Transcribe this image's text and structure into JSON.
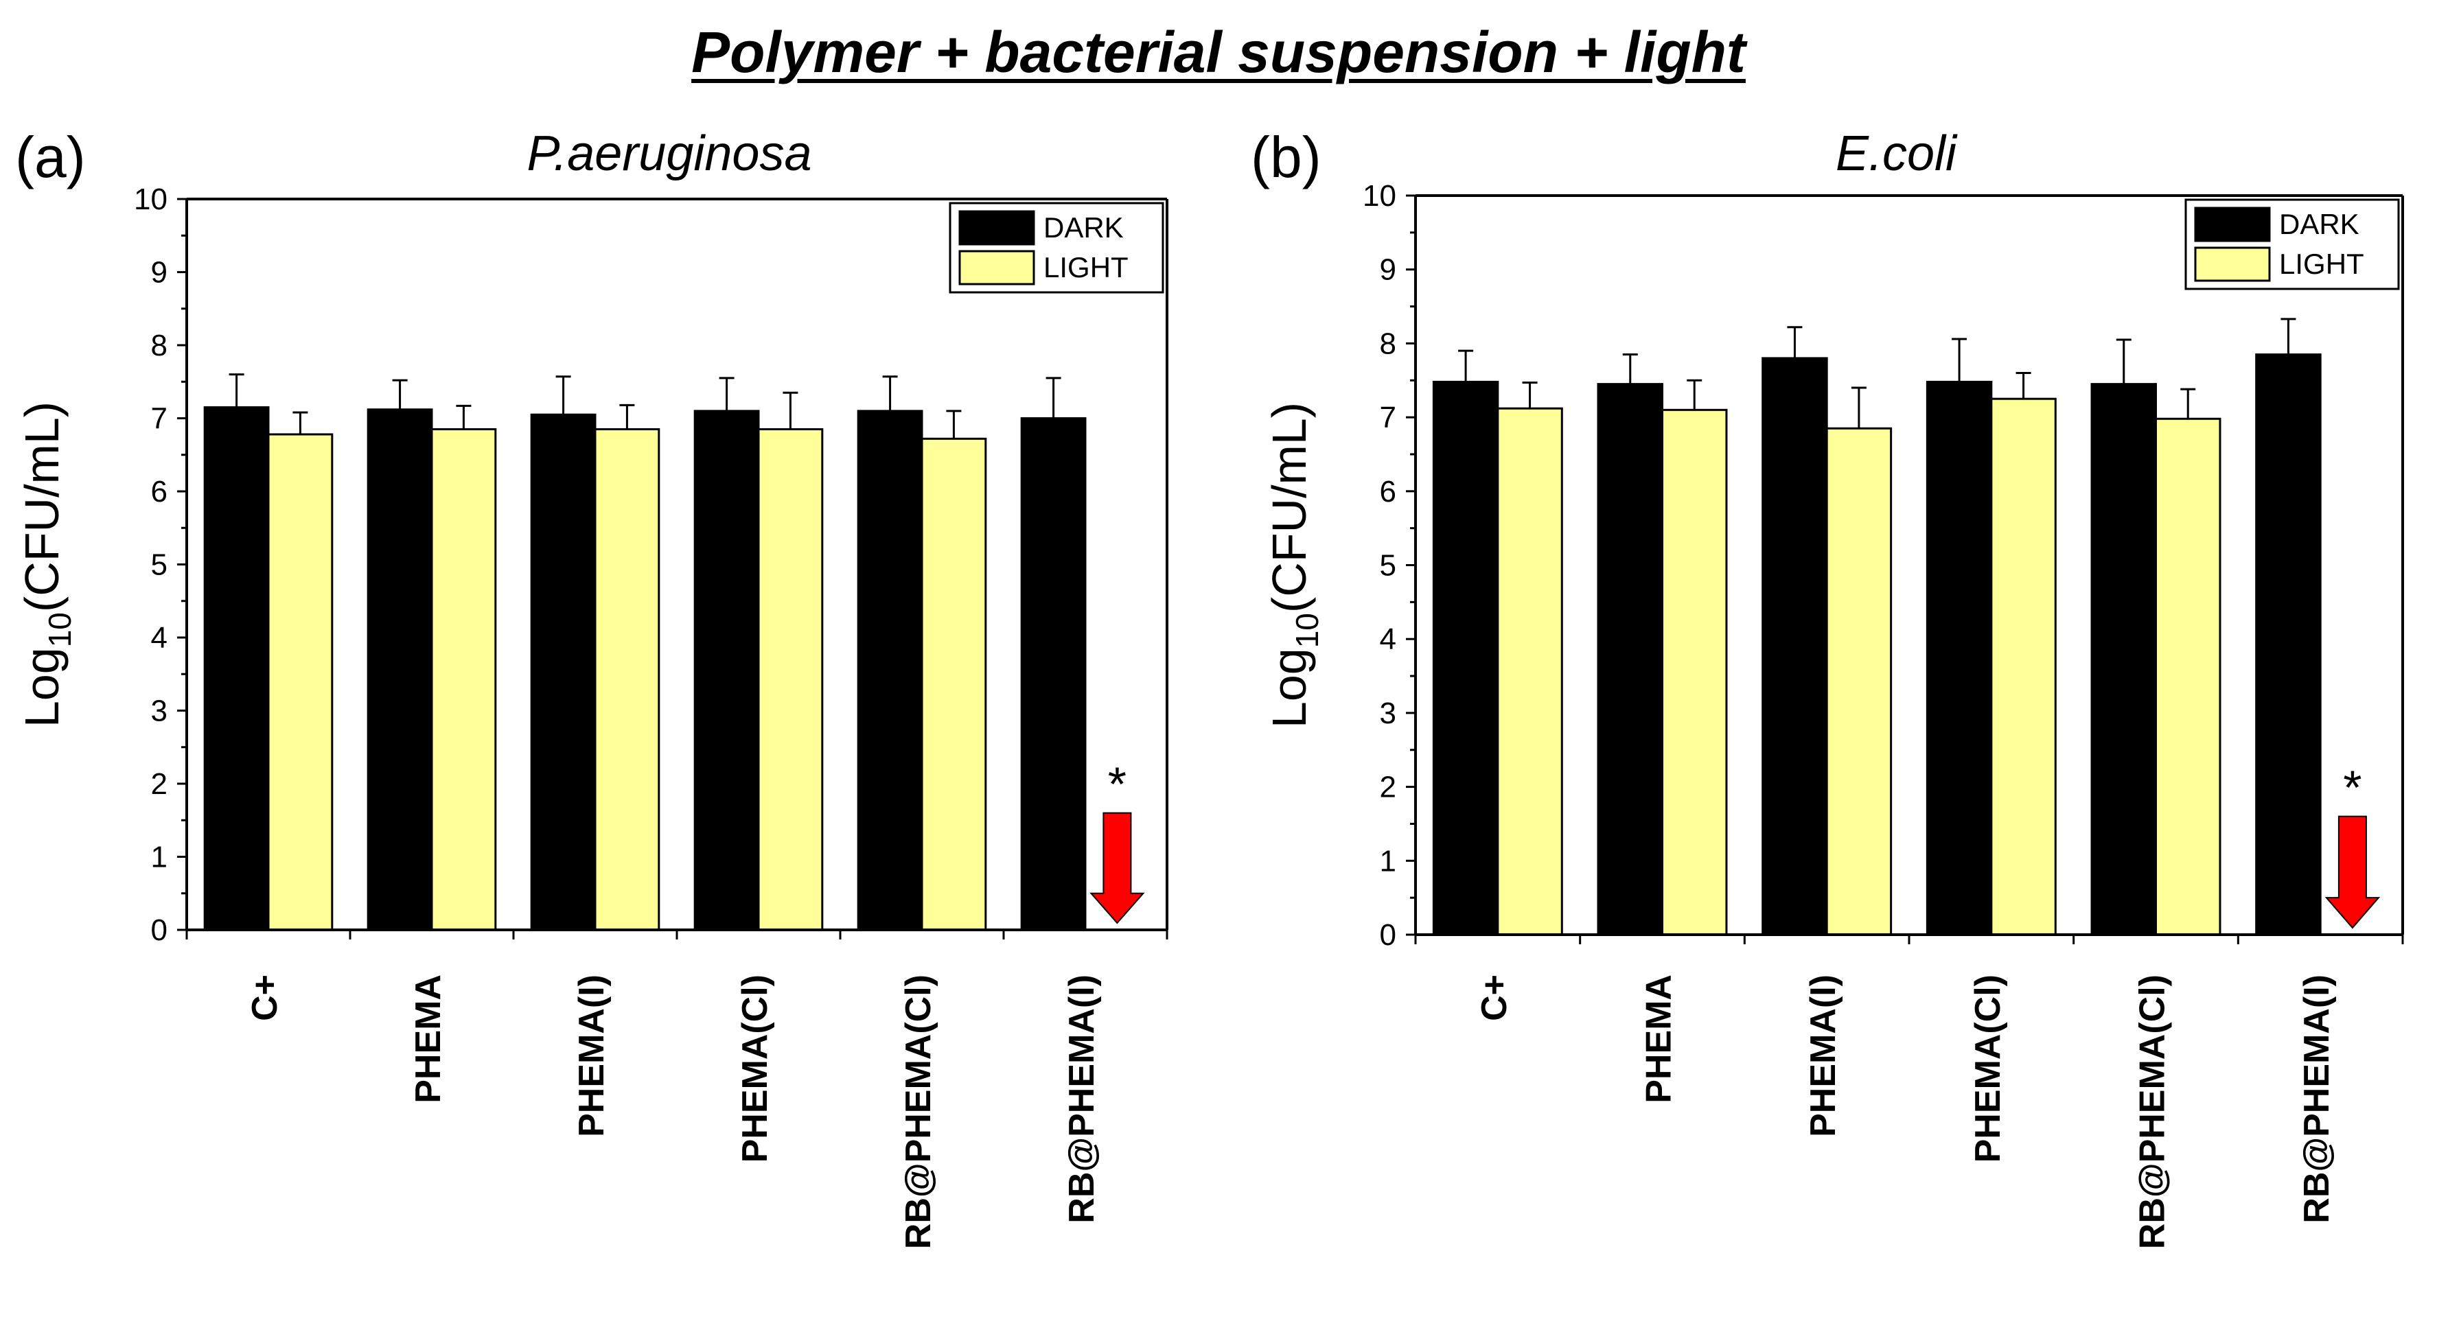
{
  "figure_title": "Polymer + bacterial suspension + light",
  "colors": {
    "dark": "#000000",
    "light": "#ffff99",
    "arrow": "#ff0000"
  },
  "chart_data": [
    {
      "type": "bar",
      "panel_label": "(a)",
      "title": "P.aeruginosa",
      "ylabel": {
        "main": "Log",
        "sub": "10",
        "rest": "(CFU/mL)"
      },
      "ylim": [
        0,
        10
      ],
      "yticks": [
        "0",
        "1",
        "2",
        "3",
        "4",
        "5",
        "6",
        "7",
        "8",
        "9",
        "10"
      ],
      "categories": [
        "C+",
        "PHEMA",
        "PHEMA(I)",
        "PHEMA(Cl)",
        "RB@PHEMA(Cl)",
        "RB@PHEMA(I)"
      ],
      "legend_position": "top-right",
      "series": [
        {
          "name": "DARK",
          "values": [
            7.15,
            7.12,
            7.05,
            7.1,
            7.1,
            7.0
          ],
          "errors": [
            0.45,
            0.4,
            0.52,
            0.45,
            0.47,
            0.55
          ]
        },
        {
          "name": "LIGHT",
          "values": [
            6.78,
            6.85,
            6.85,
            6.85,
            6.72,
            null
          ],
          "errors": [
            0.3,
            0.32,
            0.33,
            0.5,
            0.38,
            null
          ]
        }
      ],
      "annotation": {
        "category_index": 5,
        "text": "*",
        "arrow_top": 1.6
      }
    },
    {
      "type": "bar",
      "panel_label": "(b)",
      "title": "E.coli",
      "ylabel": {
        "main": "Log",
        "sub": "10",
        "rest": "(CFU/mL)"
      },
      "ylim": [
        0,
        10
      ],
      "yticks": [
        "0",
        "1",
        "2",
        "3",
        "4",
        "5",
        "6",
        "7",
        "8",
        "9",
        "10"
      ],
      "categories": [
        "C+",
        "PHEMA",
        "PHEMA(I)",
        "PHEMA(Cl)",
        "RB@PHEMA(Cl)",
        "RB@PHEMA(I)"
      ],
      "legend_position": "top-right",
      "series": [
        {
          "name": "DARK",
          "values": [
            7.48,
            7.45,
            7.8,
            7.48,
            7.45,
            7.85
          ],
          "errors": [
            0.42,
            0.4,
            0.42,
            0.58,
            0.6,
            0.48
          ]
        },
        {
          "name": "LIGHT",
          "values": [
            7.12,
            7.1,
            6.85,
            7.25,
            6.98,
            null
          ],
          "errors": [
            0.35,
            0.4,
            0.55,
            0.35,
            0.4,
            null
          ]
        }
      ],
      "annotation": {
        "category_index": 5,
        "text": "*",
        "arrow_top": 1.6
      }
    }
  ]
}
